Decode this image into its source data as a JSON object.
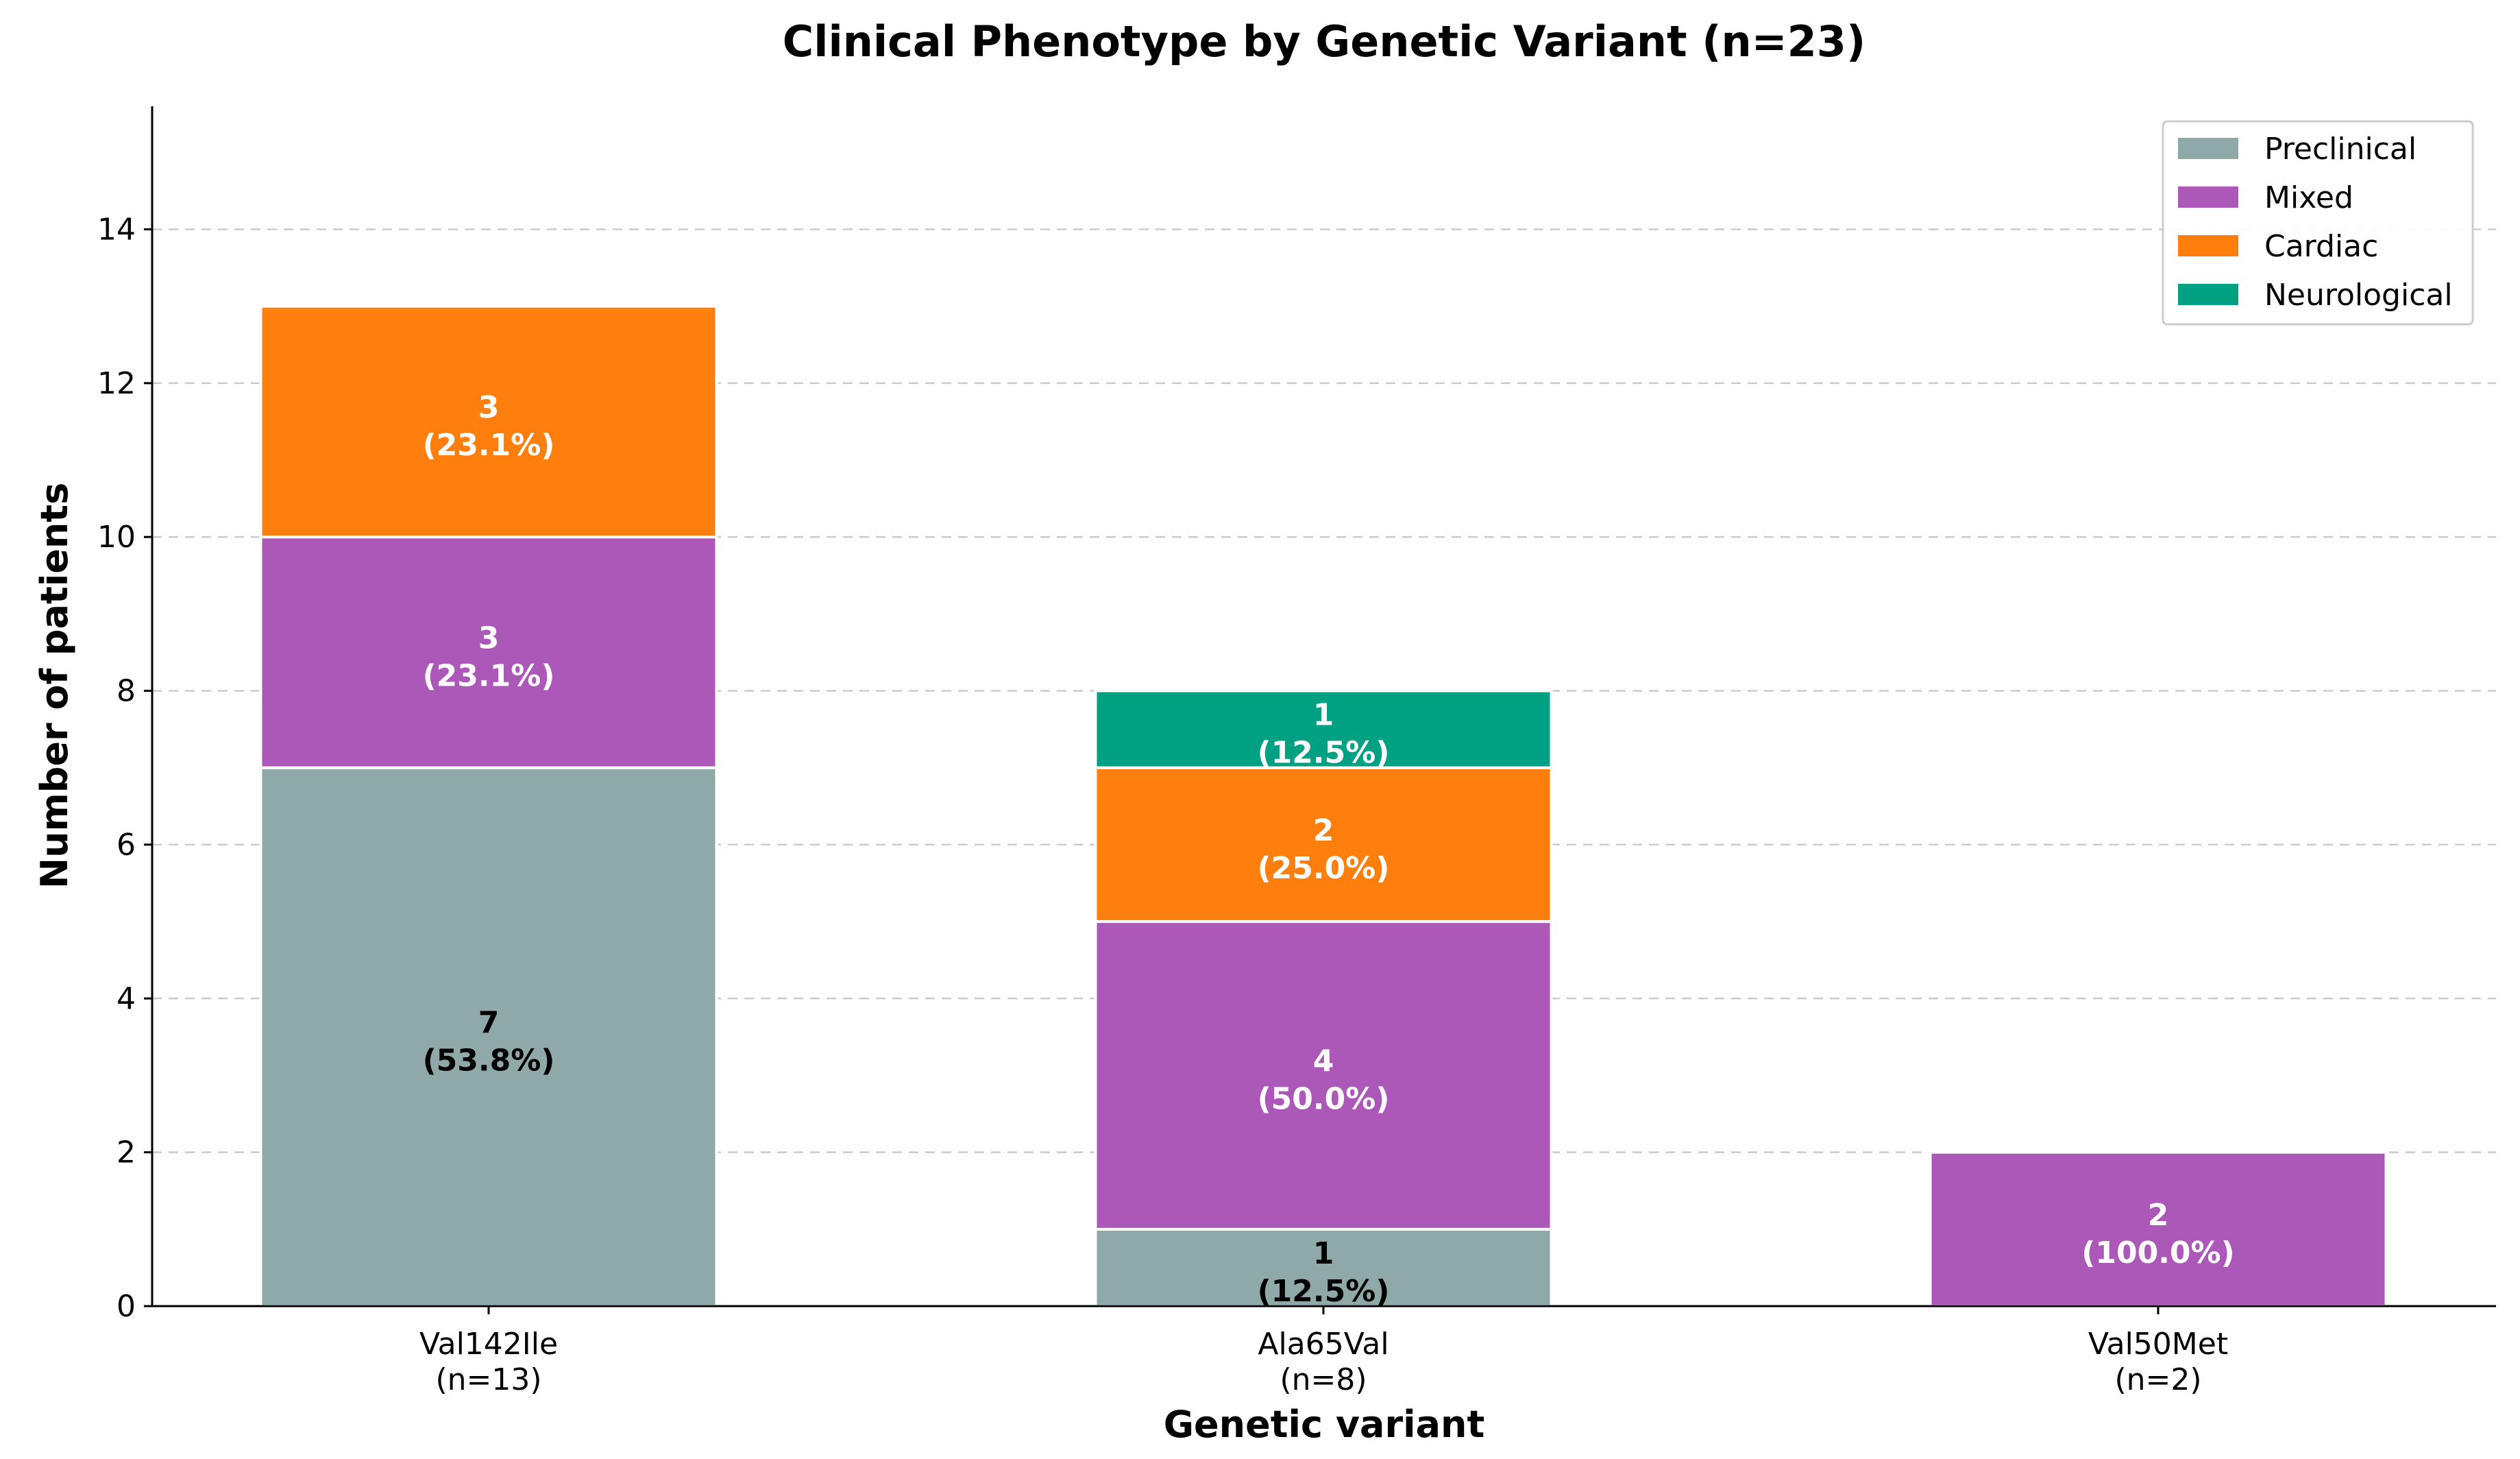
{
  "chart_data": {
    "type": "bar",
    "stacked": true,
    "title": "Clinical Phenotype by Genetic Variant (n=23)",
    "xlabel": "Genetic variant",
    "ylabel": "Number of patients",
    "ylim": [
      0,
      15.6
    ],
    "yticks": [
      0,
      2,
      4,
      6,
      8,
      10,
      12,
      14
    ],
    "grid": true,
    "legend_position": "top-right",
    "categories": [
      {
        "name": "Val142Ile",
        "n_label": "(n=13)"
      },
      {
        "name": "Ala65Val",
        "n_label": "(n=8)"
      },
      {
        "name": "Val50Met",
        "n_label": "(n=2)"
      }
    ],
    "series": [
      {
        "name": "Preclinical",
        "color": "#8fa8a8",
        "label_color": "#000000",
        "values": [
          7,
          1,
          0
        ],
        "labels": [
          [
            "7",
            "(53.8%)"
          ],
          [
            "1",
            "(12.5%)"
          ],
          [
            "",
            ""
          ]
        ]
      },
      {
        "name": "Mixed",
        "color": "#ab58b9",
        "label_color": "#ffffff",
        "values": [
          3,
          4,
          2
        ],
        "labels": [
          [
            "3",
            "(23.1%)"
          ],
          [
            "4",
            "(50.0%)"
          ],
          [
            "2",
            "(100.0%)"
          ]
        ]
      },
      {
        "name": "Cardiac",
        "color": "#ff7f0e",
        "label_color": "#ffffff",
        "values": [
          3,
          2,
          0
        ],
        "labels": [
          [
            "3",
            "(23.1%)"
          ],
          [
            "2",
            "(25.0%)"
          ],
          [
            "",
            ""
          ]
        ]
      },
      {
        "name": "Neurological",
        "color": "#00a082",
        "label_color": "#ffffff",
        "values": [
          0,
          1,
          0
        ],
        "labels": [
          [
            "",
            ""
          ],
          [
            "1",
            "(12.5%)"
          ],
          [
            "",
            ""
          ]
        ]
      }
    ]
  }
}
